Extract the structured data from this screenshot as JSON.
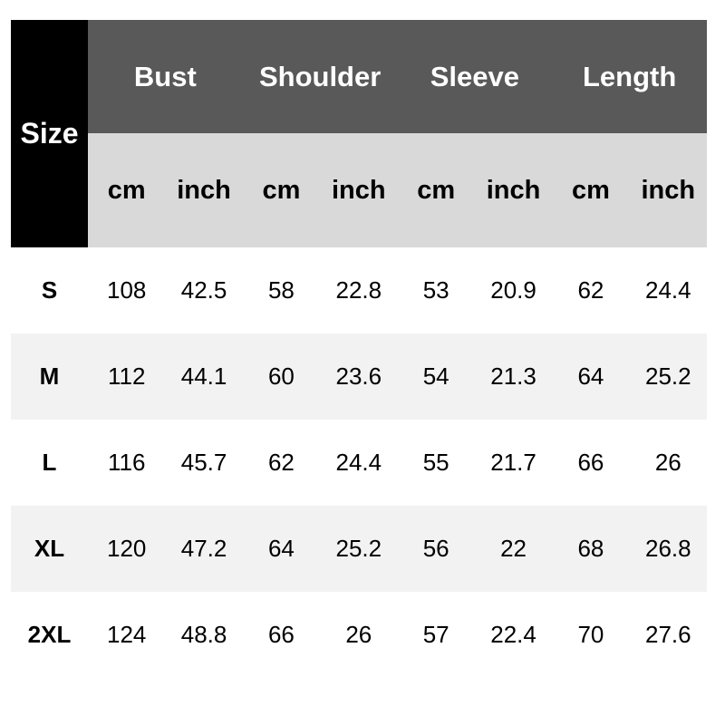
{
  "table": {
    "size_header": "Size",
    "groups": [
      "Bust",
      "Shoulder",
      "Sleeve",
      "Length"
    ],
    "units": [
      "cm",
      "inch",
      "cm",
      "inch",
      "cm",
      "inch",
      "cm",
      "inch"
    ],
    "rows": [
      [
        "S",
        "108",
        "42.5",
        "58",
        "22.8",
        "53",
        "20.9",
        "62",
        "24.4"
      ],
      [
        "M",
        "112",
        "44.1",
        "60",
        "23.6",
        "54",
        "21.3",
        "64",
        "25.2"
      ],
      [
        "L",
        "116",
        "45.7",
        "62",
        "24.4",
        "55",
        "21.7",
        "66",
        "26"
      ],
      [
        "XL",
        "120",
        "47.2",
        "64",
        "25.2",
        "56",
        "22",
        "68",
        "26.8"
      ],
      [
        "2XL",
        "124",
        "48.8",
        "66",
        "26",
        "57",
        "22.4",
        "70",
        "27.6"
      ]
    ]
  }
}
